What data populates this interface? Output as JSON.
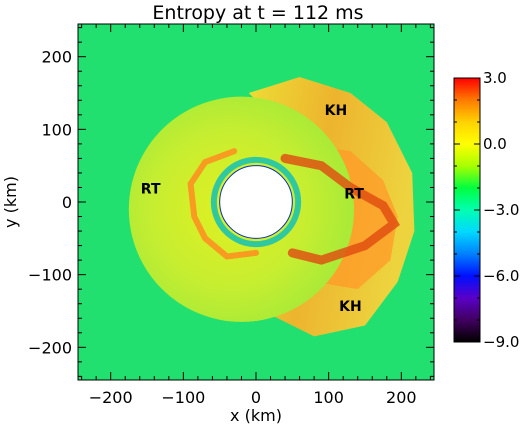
{
  "chart_data": {
    "type": "heatmap",
    "title": "Entropy at t = 112 ms",
    "xlabel": "x (km)",
    "ylabel": "y (km)",
    "xlim": [
      -245,
      245
    ],
    "ylim": [
      -245,
      245
    ],
    "xticks": [
      -200,
      -100,
      0,
      100,
      200
    ],
    "yticks": [
      -200,
      -100,
      0,
      100,
      200
    ],
    "xtick_labels": [
      "−200",
      "−100",
      "0",
      "100",
      "200"
    ],
    "ytick_labels": [
      "−200",
      "−100",
      "0",
      "100",
      "200"
    ],
    "annotations": [
      {
        "text": "KH",
        "x": 110,
        "y": 120
      },
      {
        "text": "RT",
        "x": -145,
        "y": 12
      },
      {
        "text": "RT",
        "x": 135,
        "y": 5
      },
      {
        "text": "KH",
        "x": 130,
        "y": -150
      }
    ],
    "shock_front_center": [
      0,
      0
    ],
    "inner_core_radius": 50,
    "colorbar": {
      "range": [
        -9.0,
        3.0
      ],
      "ticks": [
        3.0,
        0.0,
        -3.0,
        -6.0,
        -9.0
      ],
      "tick_labels": [
        "3.0",
        "0.0",
        "−3.0",
        "−6.0",
        "−9.0"
      ],
      "stops": [
        {
          "value": 3.0,
          "color": "#ff0000"
        },
        {
          "value": 2.0,
          "color": "#ff7a00"
        },
        {
          "value": 1.0,
          "color": "#ffd200"
        },
        {
          "value": 0.0,
          "color": "#ffff00"
        },
        {
          "value": -1.0,
          "color": "#a8ff00"
        },
        {
          "value": -2.0,
          "color": "#00ff40"
        },
        {
          "value": -3.0,
          "color": "#00ffb0"
        },
        {
          "value": -4.0,
          "color": "#00d8ff"
        },
        {
          "value": -5.0,
          "color": "#0080ff"
        },
        {
          "value": -6.0,
          "color": "#0010ff"
        },
        {
          "value": -7.0,
          "color": "#5a00c8"
        },
        {
          "value": -8.0,
          "color": "#400060"
        },
        {
          "value": -9.0,
          "color": "#000000"
        }
      ]
    },
    "background_color": "#22e070"
  }
}
